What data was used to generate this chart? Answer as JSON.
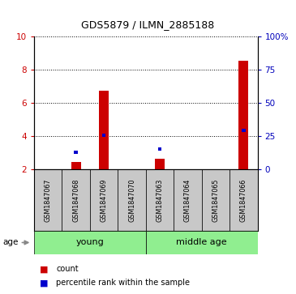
{
  "title": "GDS5879 / ILMN_2885188",
  "samples": [
    "GSM1847067",
    "GSM1847068",
    "GSM1847069",
    "GSM1847070",
    "GSM1847063",
    "GSM1847064",
    "GSM1847065",
    "GSM1847066"
  ],
  "red_values": [
    2.0,
    2.45,
    6.75,
    2.0,
    2.6,
    2.0,
    2.0,
    8.55
  ],
  "blue_values": [
    2.0,
    3.0,
    4.05,
    2.0,
    3.2,
    2.0,
    2.0,
    4.35
  ],
  "red_bar_bottom": 2.0,
  "ylim_left": [
    2,
    10
  ],
  "ylim_right": [
    0,
    100
  ],
  "yticks_left": [
    2,
    4,
    6,
    8,
    10
  ],
  "yticks_right": [
    0,
    25,
    50,
    75,
    100
  ],
  "ytick_labels_right": [
    "0",
    "25",
    "50",
    "75",
    "100%"
  ],
  "age_label": "age",
  "legend_red": "count",
  "legend_blue": "percentile rank within the sample",
  "bar_color_red": "#cc0000",
  "bar_color_blue": "#0000cc",
  "tick_box_color": "#c8c8c8",
  "group_color": "#90EE90",
  "left_tick_color": "#cc0000",
  "right_tick_color": "#0000bb",
  "title_fontsize": 9,
  "tick_fontsize": 7.5,
  "label_fontsize": 7,
  "group_fontsize": 8
}
